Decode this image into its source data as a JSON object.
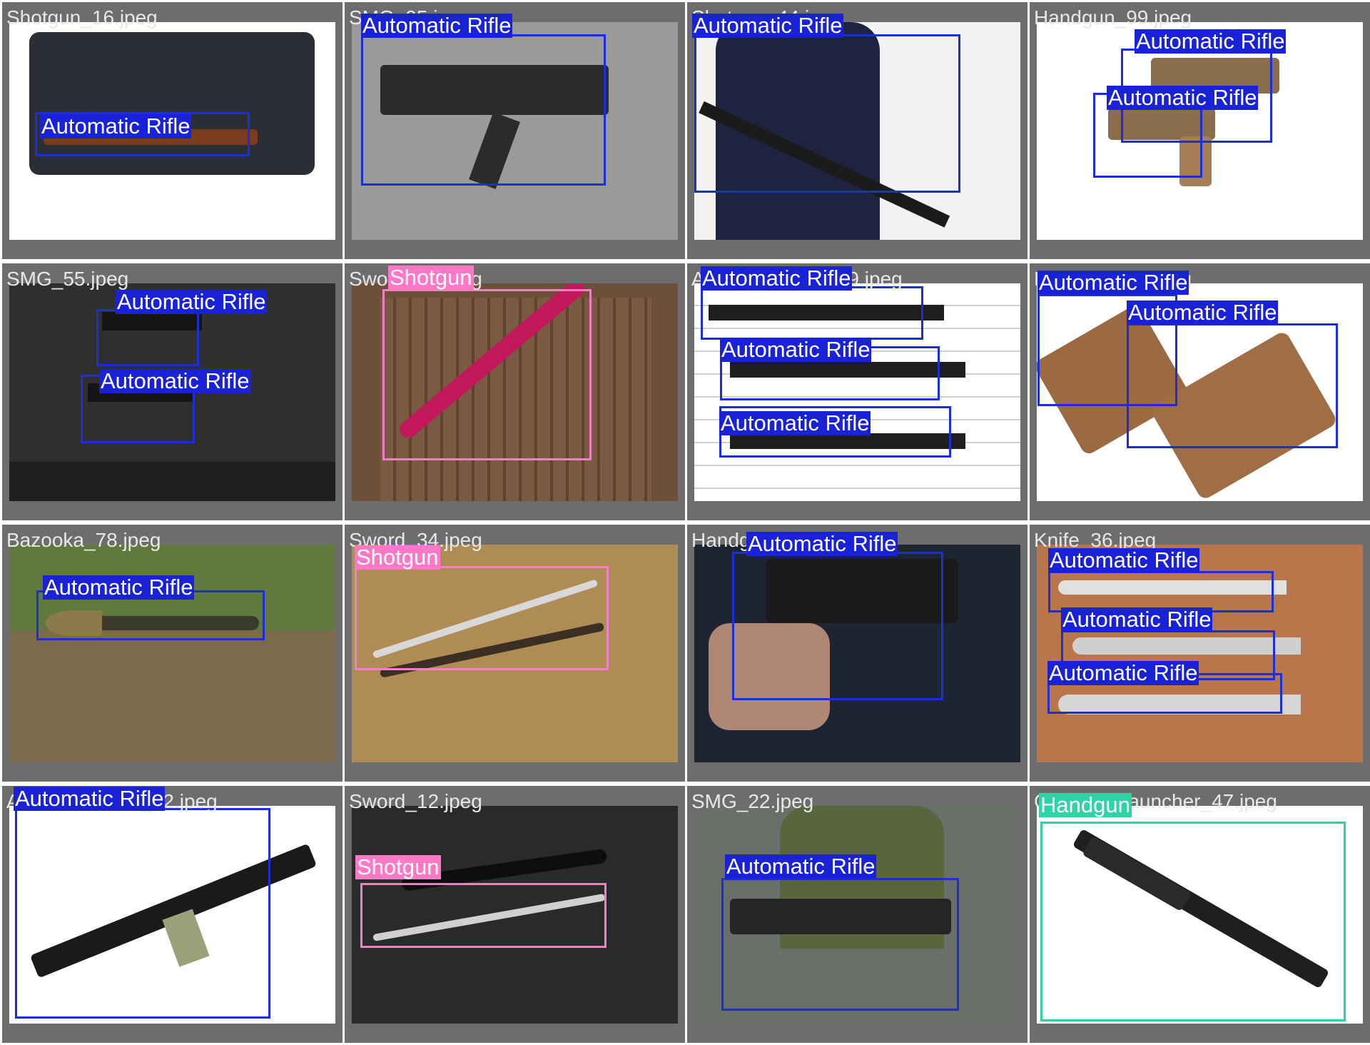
{
  "tiles": [
    {
      "file": "Shotgun_16.jpeg",
      "labels": [
        "Automatic Rifle"
      ]
    },
    {
      "file": "SMG_95.jpeg",
      "labels": [
        "Automatic Rifle"
      ]
    },
    {
      "file": "Shotgun_44.jpeg",
      "labels": [
        "Automatic Rifle"
      ]
    },
    {
      "file": "Handgun_99.jpeg",
      "labels": [
        "Automatic Rifle",
        "Automatic Rifle"
      ]
    },
    {
      "file": "SMG_55.jpeg",
      "labels": [
        "Automatic Rifle",
        "Automatic Rifle"
      ]
    },
    {
      "file": "Sword_39.jpeg",
      "labels": [
        "Shotgun"
      ]
    },
    {
      "file": "Automatic Rifle_39.jpeg",
      "labels": [
        "Automatic Rifle",
        "Automatic Rifle",
        "Automatic Rifle"
      ]
    },
    {
      "file": "Handgun_81.jpeg",
      "labels": [
        "Automatic Rifle",
        "Automatic Rifle"
      ]
    },
    {
      "file": "Bazooka_78.jpeg",
      "labels": [
        "Automatic Rifle"
      ]
    },
    {
      "file": "Sword_34.jpeg",
      "labels": [
        "Shotgun"
      ]
    },
    {
      "file": "Handgun_38.jpeg",
      "labels": [
        "Automatic Rifle"
      ]
    },
    {
      "file": "Knife_36.jpeg",
      "labels": [
        "Automatic Rifle",
        "Automatic Rifle",
        "Automatic Rifle"
      ]
    },
    {
      "file": "Automatic Rifle_42.jpeg",
      "labels": [
        "Automatic Rifle"
      ]
    },
    {
      "file": "Sword_12.jpeg",
      "labels": [
        "Shotgun"
      ]
    },
    {
      "file": "SMG_22.jpeg",
      "labels": [
        "Automatic Rifle"
      ]
    },
    {
      "file": "Grenade Launcher_47.jpeg",
      "labels": [
        "Handgun"
      ]
    }
  ],
  "colors": {
    "tile_bg": "#6d6d6d",
    "automatic_rifle": "#1a22d8",
    "shotgun": "#ff78c8",
    "handgun": "#2ed3a8"
  }
}
